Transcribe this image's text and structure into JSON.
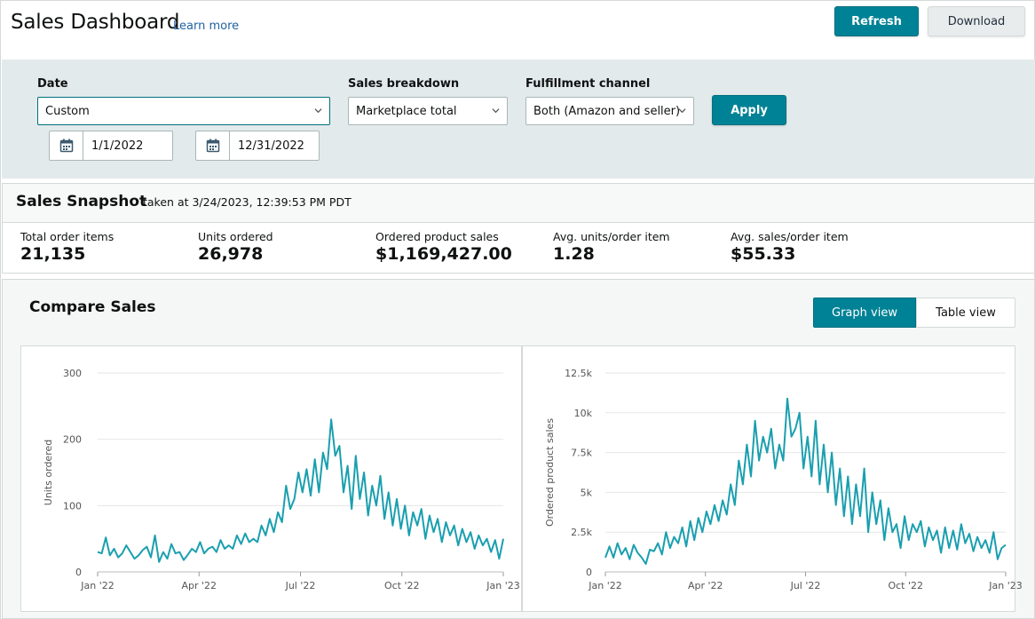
{
  "header": {
    "title": "Sales Dashboard",
    "learn_more": "Learn more",
    "refresh_label": "Refresh",
    "download_label": "Download"
  },
  "filters": {
    "date_label": "Date",
    "date_value": "Custom",
    "start_date": "1/1/2022",
    "end_date": "12/31/2022",
    "breakdown_label": "Sales breakdown",
    "breakdown_value": "Marketplace total",
    "fulfillment_label": "Fulfillment channel",
    "fulfillment_value": "Both (Amazon and seller)",
    "apply_label": "Apply"
  },
  "snapshot": {
    "title": "Sales Snapshot",
    "taken_at": "taken at 3/24/2023, 12:39:53 PM PDT",
    "metrics": [
      {
        "label": "Total order items",
        "value": "21,135"
      },
      {
        "label": "Units ordered",
        "value": "26,978"
      },
      {
        "label": "Ordered product sales",
        "value": "$1,169,427.00"
      },
      {
        "label": "Avg. units/order item",
        "value": "1.28"
      },
      {
        "label": "Avg. sales/order item",
        "value": "$55.33"
      }
    ]
  },
  "compare": {
    "title": "Compare Sales",
    "graph_view_label": "Graph view",
    "table_view_label": "Table view"
  },
  "colors": {
    "accent": "#008296",
    "line": "#1a9faf",
    "panel": "#e3eaeb"
  },
  "chart_data": [
    {
      "type": "line",
      "ylabel": "Units ordered",
      "xlabel": "",
      "ylim": [
        0,
        300
      ],
      "yticks": [
        "0",
        "100",
        "200",
        "300"
      ],
      "xticks": [
        "Jan '22",
        "Apr '22",
        "Jul '22",
        "Oct '22",
        "Jan '23"
      ],
      "series": [
        {
          "values": [
            30,
            28,
            52,
            25,
            35,
            22,
            28,
            40,
            30,
            20,
            25,
            33,
            38,
            22,
            55,
            15,
            30,
            20,
            42,
            28,
            30,
            18,
            26,
            35,
            30,
            45,
            28,
            35,
            38,
            30,
            48,
            35,
            40,
            35,
            55,
            42,
            58,
            45,
            50,
            45,
            70,
            55,
            80,
            60,
            90,
            75,
            130,
            95,
            110,
            150,
            120,
            155,
            115,
            170,
            120,
            180,
            155,
            230,
            175,
            190,
            120,
            160,
            95,
            175,
            110,
            150,
            85,
            130,
            100,
            145,
            80,
            120,
            70,
            110,
            65,
            100,
            55,
            90,
            70,
            95,
            50,
            85,
            60,
            80,
            45,
            75,
            55,
            70,
            40,
            65,
            45,
            60,
            35,
            55,
            40,
            50,
            30,
            48,
            20,
            50
          ]
        }
      ]
    },
    {
      "type": "line",
      "ylabel": "Ordered product sales",
      "xlabel": "",
      "ylim": [
        0,
        12500
      ],
      "yticks": [
        "0",
        "2.5k",
        "5k",
        "7.5k",
        "10k",
        "12.5k"
      ],
      "xticks": [
        "Jan '22",
        "Apr '22",
        "Jul '22",
        "Oct '22",
        "Jan '23"
      ],
      "series": [
        {
          "values": [
            900,
            1600,
            900,
            1800,
            1100,
            1500,
            800,
            1700,
            1200,
            900,
            500,
            1400,
            1300,
            1800,
            1100,
            2500,
            1500,
            2200,
            1800,
            2800,
            1600,
            3200,
            2000,
            3400,
            2500,
            3800,
            3000,
            4200,
            3200,
            4500,
            3600,
            5500,
            4200,
            7000,
            5500,
            8000,
            6000,
            9500,
            7000,
            8500,
            7500,
            9000,
            6500,
            8000,
            7000,
            10900,
            8500,
            9000,
            10000,
            6500,
            8500,
            6000,
            9500,
            5500,
            8000,
            5000,
            7500,
            4200,
            6500,
            3500,
            6000,
            3000,
            5500,
            3500,
            6500,
            2500,
            5000,
            3000,
            4500,
            2000,
            4000,
            2500,
            3000,
            1500,
            3500,
            2000,
            3000,
            2500,
            3200,
            1600,
            2800,
            2000,
            2600,
            1200,
            2800,
            1500,
            2600,
            1400,
            3000,
            1800,
            2400,
            1300,
            2200,
            1500,
            2000,
            1200,
            2500,
            800,
            1500,
            1700
          ]
        }
      ]
    }
  ]
}
